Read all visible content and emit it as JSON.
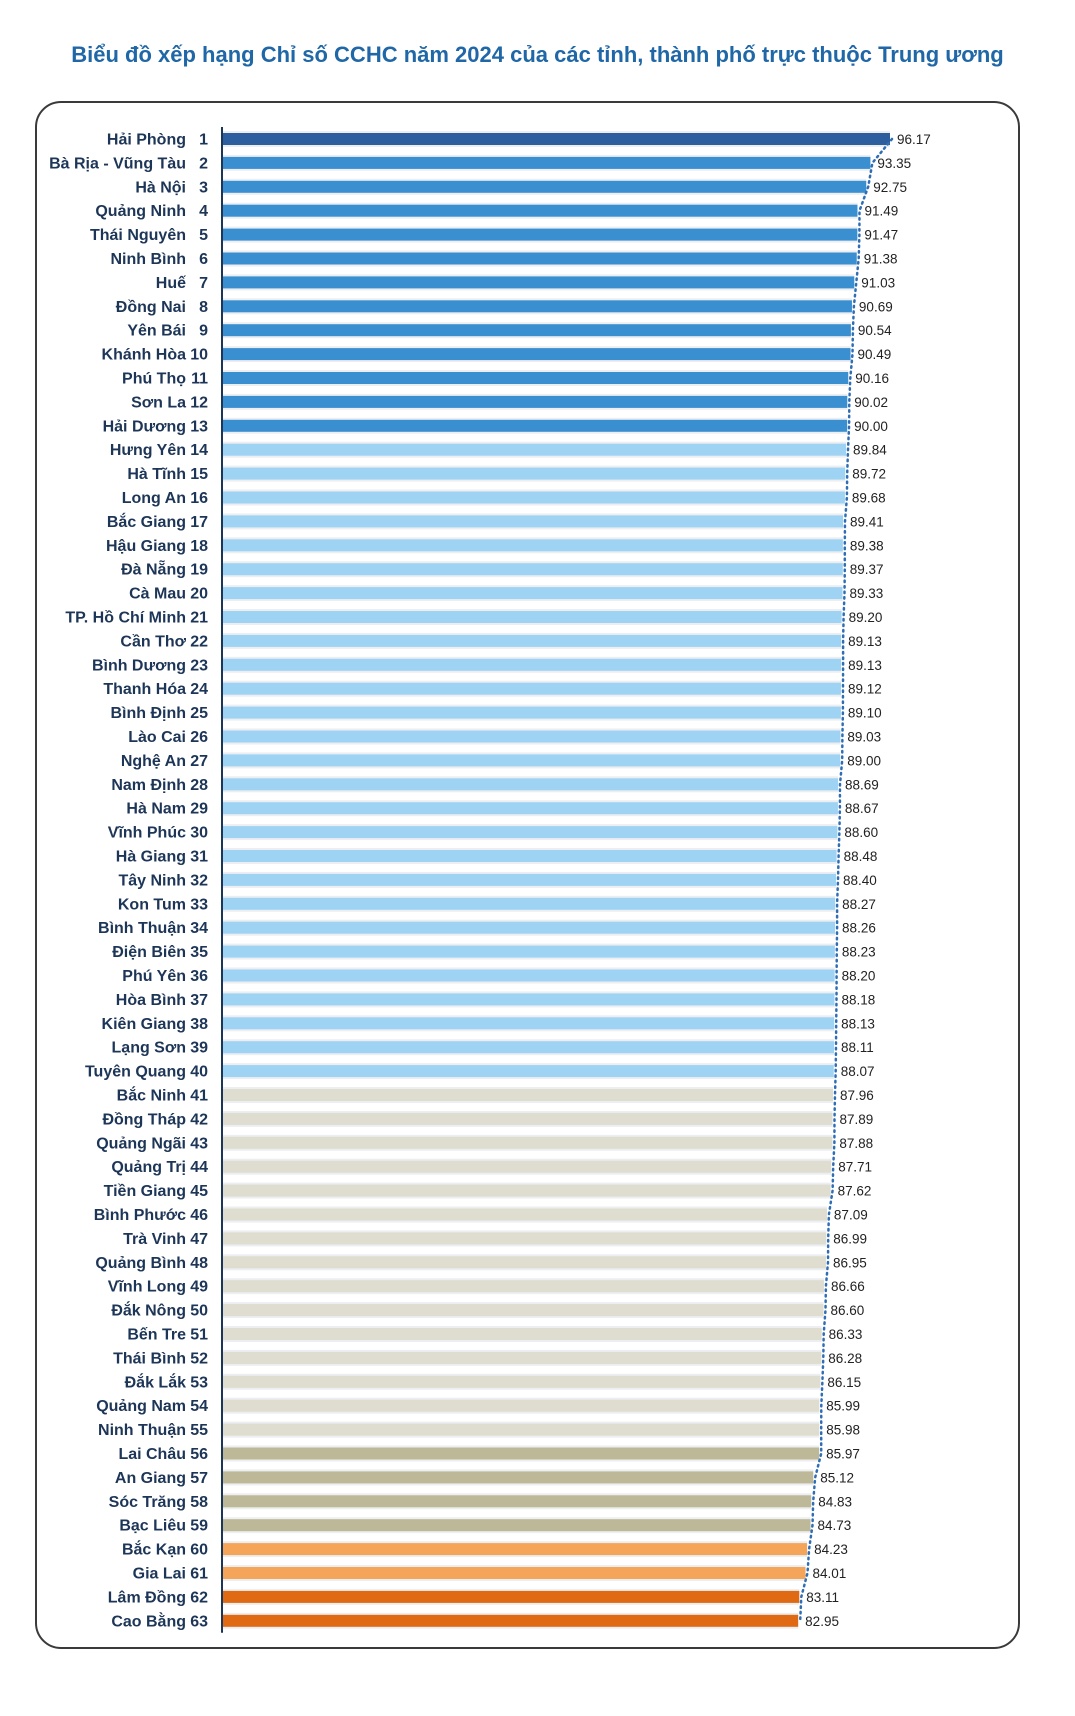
{
  "chart_data": {
    "type": "bar",
    "orientation": "horizontal",
    "title": "Biểu đồ xếp hạng Chỉ số CCHC năm 2024 của các tỉnh, thành phố trực thuộc Trung ương",
    "xlabel": "",
    "ylabel": "",
    "xlim": [
      0,
      96.17
    ],
    "grid": false,
    "legend": "none",
    "trendline": "dotted",
    "colors": {
      "top": "#2d5e9e",
      "group1": "#3a8fd0",
      "group2": "#9fd3f3",
      "group3": "#deddcf",
      "group4": "#bdb897",
      "orange_light": "#f4a55a",
      "orange_dark": "#e06a14",
      "trend": "#2f6db5"
    },
    "items": [
      {
        "name": "Hải Phòng",
        "rank": "1",
        "value": 96.17,
        "label": "96.17",
        "color": "#2d5e9e"
      },
      {
        "name": "Bà Rịa - Vũng Tàu",
        "rank": "2",
        "value": 93.35,
        "label": "93.35",
        "color": "#3a8fd0"
      },
      {
        "name": "Hà Nội",
        "rank": "3",
        "value": 92.75,
        "label": "92.75",
        "color": "#3a8fd0"
      },
      {
        "name": "Quảng Ninh",
        "rank": "4",
        "value": 91.49,
        "label": "91.49",
        "color": "#3a8fd0"
      },
      {
        "name": "Thái Nguyên",
        "rank": "5",
        "value": 91.47,
        "label": "91.47",
        "color": "#3a8fd0"
      },
      {
        "name": "Ninh Bình",
        "rank": "6",
        "value": 91.38,
        "label": "91.38",
        "color": "#3a8fd0"
      },
      {
        "name": "Huế",
        "rank": "7",
        "value": 91.03,
        "label": "91.03",
        "color": "#3a8fd0"
      },
      {
        "name": "Đồng Nai",
        "rank": "8",
        "value": 90.69,
        "label": "90.69",
        "color": "#3a8fd0"
      },
      {
        "name": "Yên Bái",
        "rank": "9",
        "value": 90.54,
        "label": "90.54",
        "color": "#3a8fd0"
      },
      {
        "name": "Khánh Hòa",
        "rank": "10",
        "value": 90.49,
        "label": "90.49",
        "color": "#3a8fd0"
      },
      {
        "name": "Phú Thọ",
        "rank": "11",
        "value": 90.16,
        "label": "90.16",
        "color": "#3a8fd0"
      },
      {
        "name": "Sơn La",
        "rank": "12",
        "value": 90.02,
        "label": "90.02",
        "color": "#3a8fd0"
      },
      {
        "name": "Hải Dương",
        "rank": "13",
        "value": 90.0,
        "label": "90.00",
        "color": "#3a8fd0"
      },
      {
        "name": "Hưng Yên",
        "rank": "14",
        "value": 89.84,
        "label": "89.84",
        "color": "#9fd3f3"
      },
      {
        "name": "Hà Tĩnh",
        "rank": "15",
        "value": 89.72,
        "label": "89.72",
        "color": "#9fd3f3"
      },
      {
        "name": "Long An",
        "rank": "16",
        "value": 89.68,
        "label": "89.68",
        "color": "#9fd3f3"
      },
      {
        "name": "Bắc Giang",
        "rank": "17",
        "value": 89.41,
        "label": "89.41",
        "color": "#9fd3f3"
      },
      {
        "name": "Hậu Giang",
        "rank": "18",
        "value": 89.38,
        "label": "89.38",
        "color": "#9fd3f3"
      },
      {
        "name": "Đà Nẵng",
        "rank": "19",
        "value": 89.37,
        "label": "89.37",
        "color": "#9fd3f3"
      },
      {
        "name": "Cà Mau",
        "rank": "20",
        "value": 89.33,
        "label": "89.33",
        "color": "#9fd3f3"
      },
      {
        "name": "TP. Hồ Chí Minh",
        "rank": "21",
        "value": 89.2,
        "label": "89.20",
        "color": "#9fd3f3"
      },
      {
        "name": "Cần Thơ",
        "rank": "22",
        "value": 89.13,
        "label": "89.13",
        "color": "#9fd3f3"
      },
      {
        "name": "Bình Dương",
        "rank": "23",
        "value": 89.13,
        "label": "89.13",
        "color": "#9fd3f3"
      },
      {
        "name": "Thanh Hóa",
        "rank": "24",
        "value": 89.12,
        "label": "89.12",
        "color": "#9fd3f3"
      },
      {
        "name": "Bình Định",
        "rank": "25",
        "value": 89.1,
        "label": "89.10",
        "color": "#9fd3f3"
      },
      {
        "name": "Lào Cai",
        "rank": "26",
        "value": 89.03,
        "label": "89.03",
        "color": "#9fd3f3"
      },
      {
        "name": "Nghệ An",
        "rank": "27",
        "value": 89.0,
        "label": "89.00",
        "color": "#9fd3f3"
      },
      {
        "name": "Nam Định",
        "rank": "28",
        "value": 88.69,
        "label": "88.69",
        "color": "#9fd3f3"
      },
      {
        "name": "Hà Nam",
        "rank": "29",
        "value": 88.67,
        "label": "88.67",
        "color": "#9fd3f3"
      },
      {
        "name": "Vĩnh Phúc",
        "rank": "30",
        "value": 88.6,
        "label": "88.60",
        "color": "#9fd3f3"
      },
      {
        "name": "Hà Giang",
        "rank": "31",
        "value": 88.48,
        "label": "88.48",
        "color": "#9fd3f3"
      },
      {
        "name": "Tây Ninh",
        "rank": "32",
        "value": 88.4,
        "label": "88.40",
        "color": "#9fd3f3"
      },
      {
        "name": "Kon Tum",
        "rank": "33",
        "value": 88.27,
        "label": "88.27",
        "color": "#9fd3f3"
      },
      {
        "name": "Bình Thuận",
        "rank": "34",
        "value": 88.26,
        "label": "88.26",
        "color": "#9fd3f3"
      },
      {
        "name": "Điện Biên",
        "rank": "35",
        "value": 88.23,
        "label": "88.23",
        "color": "#9fd3f3"
      },
      {
        "name": "Phú Yên",
        "rank": "36",
        "value": 88.2,
        "label": "88.20",
        "color": "#9fd3f3"
      },
      {
        "name": "Hòa Bình",
        "rank": "37",
        "value": 88.18,
        "label": "88.18",
        "color": "#9fd3f3"
      },
      {
        "name": "Kiên Giang",
        "rank": "38",
        "value": 88.13,
        "label": "88.13",
        "color": "#9fd3f3"
      },
      {
        "name": "Lạng Sơn",
        "rank": "39",
        "value": 88.11,
        "label": "88.11",
        "color": "#9fd3f3"
      },
      {
        "name": "Tuyên Quang",
        "rank": "40",
        "value": 88.07,
        "label": "88.07",
        "color": "#9fd3f3"
      },
      {
        "name": "Bắc Ninh",
        "rank": "41",
        "value": 87.96,
        "label": "87.96",
        "color": "#deddcf"
      },
      {
        "name": "Đồng Tháp",
        "rank": "42",
        "value": 87.89,
        "label": "87.89",
        "color": "#deddcf"
      },
      {
        "name": "Quảng Ngãi",
        "rank": "43",
        "value": 87.88,
        "label": "87.88",
        "color": "#deddcf"
      },
      {
        "name": "Quảng Trị",
        "rank": "44",
        "value": 87.71,
        "label": "87.71",
        "color": "#deddcf"
      },
      {
        "name": "Tiền Giang",
        "rank": "45",
        "value": 87.62,
        "label": "87.62",
        "color": "#deddcf"
      },
      {
        "name": "Bình Phước",
        "rank": "46",
        "value": 87.09,
        "label": "87.09",
        "color": "#deddcf"
      },
      {
        "name": "Trà Vinh",
        "rank": "47",
        "value": 86.99,
        "label": "86.99",
        "color": "#deddcf"
      },
      {
        "name": "Quảng Bình",
        "rank": "48",
        "value": 86.95,
        "label": "86.95",
        "color": "#deddcf"
      },
      {
        "name": "Vĩnh Long",
        "rank": "49",
        "value": 86.66,
        "label": "86.66",
        "color": "#deddcf"
      },
      {
        "name": "Đắk Nông",
        "rank": "50",
        "value": 86.6,
        "label": "86.60",
        "color": "#deddcf"
      },
      {
        "name": "Bến Tre",
        "rank": "51",
        "value": 86.33,
        "label": "86.33",
        "color": "#deddcf"
      },
      {
        "name": "Thái Bình",
        "rank": "52",
        "value": 86.28,
        "label": "86.28",
        "color": "#deddcf"
      },
      {
        "name": "Đắk Lắk",
        "rank": "53",
        "value": 86.15,
        "label": "86.15",
        "color": "#deddcf"
      },
      {
        "name": "Quảng Nam",
        "rank": "54",
        "value": 85.99,
        "label": "85.99",
        "color": "#deddcf"
      },
      {
        "name": "Ninh Thuận",
        "rank": "55",
        "value": 85.98,
        "label": "85.98",
        "color": "#deddcf"
      },
      {
        "name": "Lai Châu",
        "rank": "56",
        "value": 85.97,
        "label": "85.97",
        "color": "#bdb897"
      },
      {
        "name": "An Giang",
        "rank": "57",
        "value": 85.12,
        "label": "85.12",
        "color": "#bdb897"
      },
      {
        "name": "Sóc Trăng",
        "rank": "58",
        "value": 84.83,
        "label": "84.83",
        "color": "#bdb897"
      },
      {
        "name": "Bạc Liêu",
        "rank": "59",
        "value": 84.73,
        "label": "84.73",
        "color": "#bdb897"
      },
      {
        "name": "Bắc Kạn",
        "rank": "60",
        "value": 84.23,
        "label": "84.23",
        "color": "#f4a55a"
      },
      {
        "name": "Gia Lai",
        "rank": "61",
        "value": 84.01,
        "label": "84.01",
        "color": "#f4a55a"
      },
      {
        "name": "Lâm Đồng",
        "rank": "62",
        "value": 83.11,
        "label": "83.11",
        "color": "#e06a14"
      },
      {
        "name": "Cao Bằng",
        "rank": "63",
        "value": 82.95,
        "label": "82.95",
        "color": "#e06a14"
      }
    ]
  }
}
